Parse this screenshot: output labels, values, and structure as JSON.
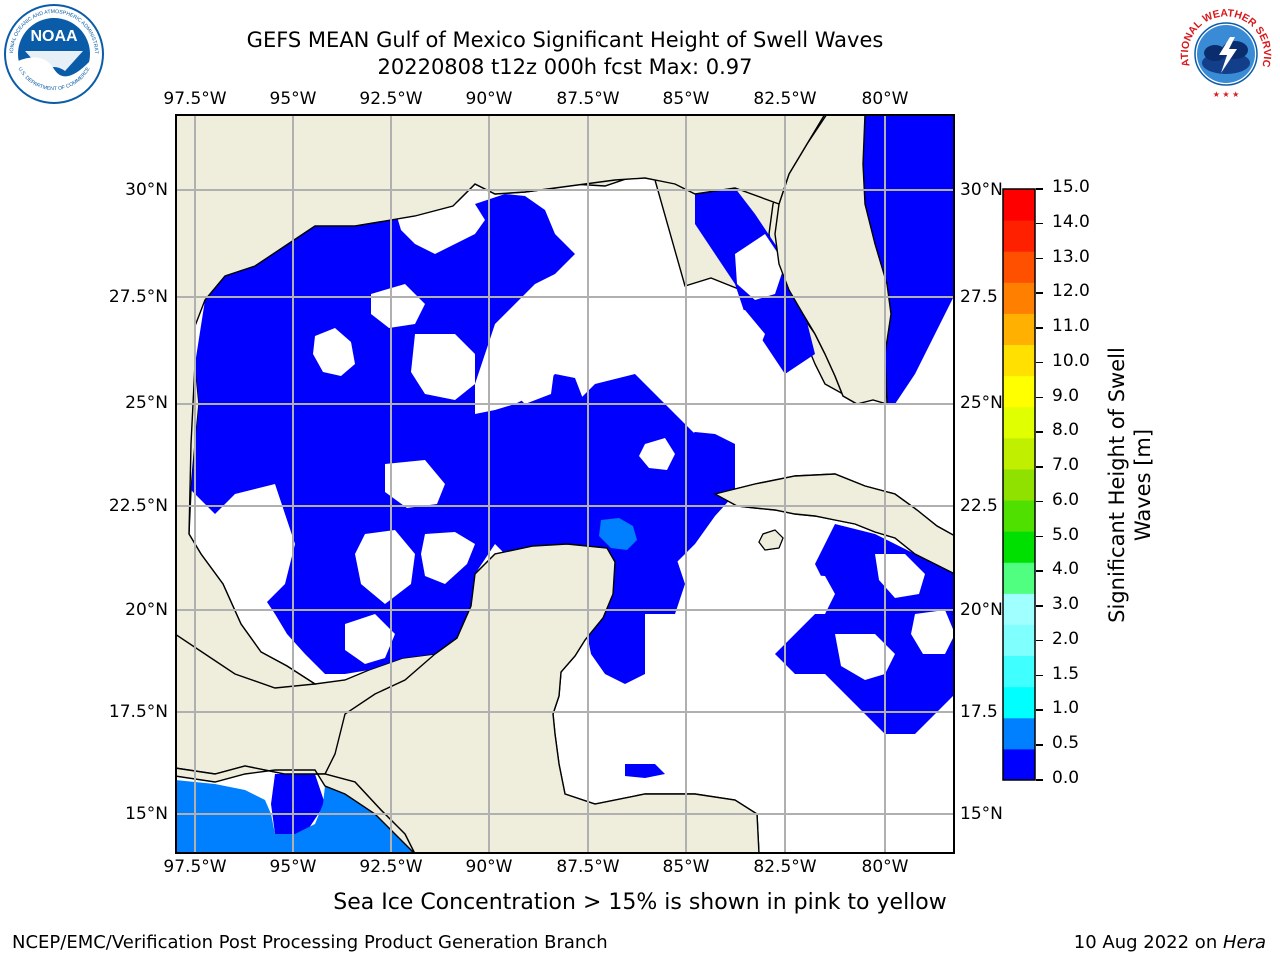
{
  "header": {
    "title_line1": "GEFS MEAN Gulf of Mexico Significant Height of Swell Waves",
    "title_line2": "20220808 t12z 000h fcst   Max: 0.97"
  },
  "logos": {
    "left": {
      "text": "NOAA",
      "ring_top": "NATIONAL OCEANIC AND ATMOSPHERIC ADMINISTRATION",
      "ring_bottom": "U.S. DEPARTMENT OF COMMERCE",
      "color": "#0a5ca8"
    },
    "right": {
      "ring": "NATIONAL WEATHER SERVICE",
      "color": "#d7191c"
    }
  },
  "map": {
    "lon_ticks": [
      "97.5°W",
      "95°W",
      "92.5°W",
      "90°W",
      "87.5°W",
      "85°W",
      "82.5°W",
      "80°W"
    ],
    "lat_ticks": [
      "30°N",
      "27.5°N",
      "25°N",
      "22.5°N",
      "20°N",
      "17.5°N",
      "15°N"
    ],
    "right_lat_ticks": [
      "30°N",
      "27.5",
      "25°N",
      "22.5",
      "20°N",
      "17.5",
      "15°N"
    ],
    "land_color": "#efeedc",
    "sea_blank_color": "#ffffff",
    "grid_color": "#b0b0b0"
  },
  "colorbar": {
    "title": "Significant Height of Swell Waves [m]",
    "title_line1": "Significant Height of Swell",
    "title_line2": "Waves [m]",
    "labels": [
      "15.0",
      "14.0",
      "13.0",
      "12.0",
      "11.0",
      "10.0",
      "9.0",
      "8.0",
      "7.0",
      "6.0",
      "5.0",
      "4.0",
      "3.0",
      "2.0",
      "1.5",
      "1.0",
      "0.5",
      "0.0"
    ],
    "colors": [
      "#0000ff",
      "#0080ff",
      "#00ffff",
      "#40ffff",
      "#80ffff",
      "#a0ffff",
      "#50ff80",
      "#00e000",
      "#50e000",
      "#90e000",
      "#c0f000",
      "#e0ff00",
      "#ffff00",
      "#ffe000",
      "#ffb000",
      "#ff8000",
      "#ff5000",
      "#ff2000",
      "#ff0000"
    ]
  },
  "note": "Sea Ice Concentration > 15% is shown in pink to yellow",
  "footer": {
    "left": "NCEP/EMC/Verification Post Processing Product Generation Branch",
    "right_prefix": "10 Aug 2022 on ",
    "right_italic": "Hera"
  }
}
